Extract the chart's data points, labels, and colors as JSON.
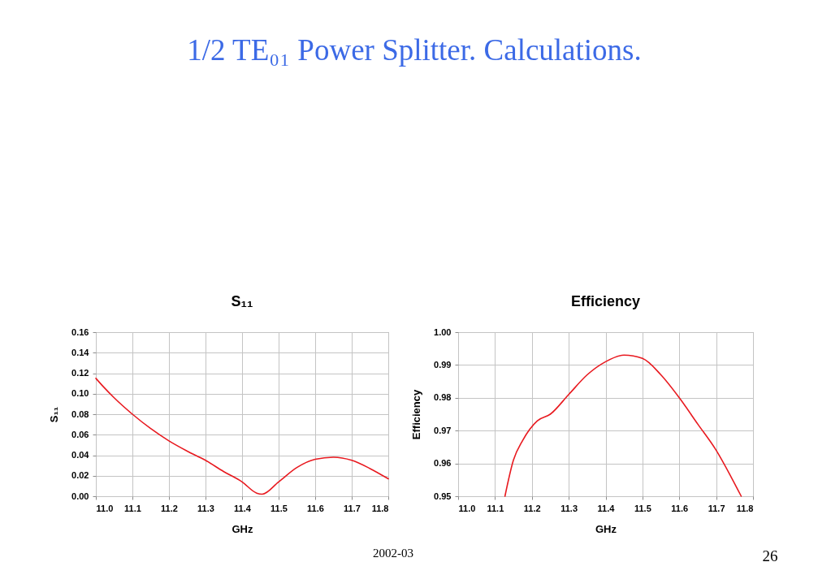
{
  "chart_data": [
    {
      "type": "other",
      "title": "1/2 TE₀₁ Power Splitter. Calculations.",
      "annotations": [
        "2002-03",
        "26"
      ]
    },
    {
      "type": "line",
      "title": "S₁₁",
      "xlabel": "GHz",
      "ylabel": "S₁₁",
      "x": [
        11.0,
        11.02,
        11.05,
        11.1,
        11.15,
        11.2,
        11.25,
        11.3,
        11.35,
        11.4,
        11.44,
        11.455,
        11.5,
        11.55,
        11.6,
        11.65,
        11.7,
        11.75,
        11.8
      ],
      "series": [
        {
          "color": "#e8191f",
          "values": [
            0.115,
            0.107,
            0.096,
            0.08,
            0.066,
            0.054,
            0.044,
            0.035,
            0.024,
            0.014,
            0.003,
            0.002,
            0.014,
            0.028,
            0.036,
            0.038,
            0.035,
            0.027,
            0.017
          ]
        }
      ],
      "xlim": [
        11.0,
        11.8
      ],
      "xticks": [
        {
          "value": 11.0,
          "label": "11.0"
        },
        11.1,
        11.2,
        11.3,
        11.4,
        11.5,
        11.6,
        11.7,
        11.8
      ],
      "ylim": [
        0,
        0.16
      ],
      "yticks": [
        {
          "value": 0,
          "label": "0.00"
        },
        0.02,
        0.04,
        0.06,
        0.08,
        {
          "value": 0.1,
          "label": "0.10"
        },
        0.12,
        0.14,
        0.16
      ],
      "grid": true
    },
    {
      "type": "line",
      "title": "Efficiency",
      "xlabel": "GHz",
      "ylabel": "Efficiency",
      "x": [
        11.127,
        11.15,
        11.175,
        11.215,
        11.25,
        11.3,
        11.35,
        11.4,
        11.45,
        11.5,
        11.55,
        11.6,
        11.65,
        11.7,
        11.74,
        11.768
      ],
      "series": [
        {
          "color": "#e8191f",
          "values": [
            0.95,
            0.961,
            0.967,
            0.973,
            0.975,
            0.981,
            0.987,
            0.991,
            0.993,
            0.992,
            0.987,
            0.98,
            0.972,
            0.964,
            0.956,
            0.95
          ]
        }
      ],
      "xlim": [
        11.0,
        11.8
      ],
      "xticks": [
        {
          "value": 11.0,
          "label": "11.0"
        },
        11.1,
        11.2,
        11.3,
        11.4,
        11.5,
        11.6,
        11.7,
        11.8
      ],
      "ylim": [
        0.95,
        1.0
      ],
      "yticks": [
        0.95,
        0.96,
        0.97,
        0.98,
        0.99,
        {
          "value": 1,
          "label": "1.00"
        }
      ],
      "grid": true
    }
  ]
}
